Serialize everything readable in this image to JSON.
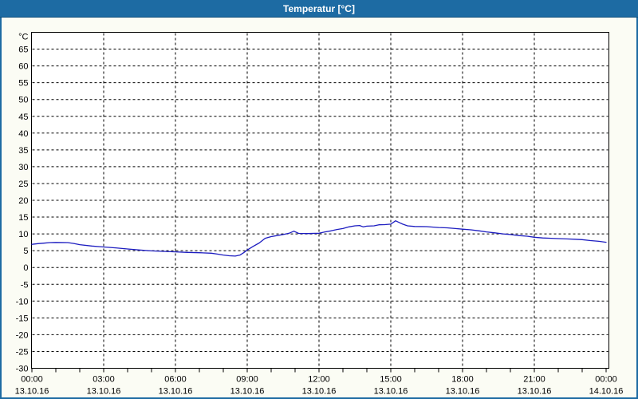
{
  "window": {
    "title": "Temperatur [°C]"
  },
  "colors": {
    "titlebar_bg": "#1d6ba3",
    "titlebar_text": "#ffffff",
    "titlebar_underline": "#0e4e7c",
    "window_border": "#1d6ba3",
    "page_bg": "#fbfcf4",
    "plot_bg": "#ffffff",
    "plot_border": "#000000",
    "grid": "#000000",
    "tick_text": "#000000",
    "series_line": "#1c1cc0"
  },
  "chart_data": {
    "type": "line",
    "title": "Temperatur [°C]",
    "y_unit_label": "°C",
    "ylim": [
      -30,
      70
    ],
    "ytick_step": 5,
    "yticks": [
      65,
      60,
      55,
      50,
      45,
      40,
      35,
      30,
      25,
      20,
      15,
      10,
      5,
      0,
      -5,
      -10,
      -15,
      -20,
      -25,
      -30
    ],
    "x_hours_range": [
      0,
      24
    ],
    "x_minor_tick_hours": 1,
    "x_major_ticks": [
      {
        "hour": 0,
        "time": "00:00",
        "date": "13.10.16"
      },
      {
        "hour": 3,
        "time": "03:00",
        "date": "13.10.16"
      },
      {
        "hour": 6,
        "time": "06:00",
        "date": "13.10.16"
      },
      {
        "hour": 9,
        "time": "09:00",
        "date": "13.10.16"
      },
      {
        "hour": 12,
        "time": "12:00",
        "date": "13.10.16"
      },
      {
        "hour": 15,
        "time": "15:00",
        "date": "13.10.16"
      },
      {
        "hour": 18,
        "time": "18:00",
        "date": "13.10.16"
      },
      {
        "hour": 21,
        "time": "21:00",
        "date": "13.10.16"
      },
      {
        "hour": 24,
        "time": "00:00",
        "date": "14.10.16"
      }
    ],
    "grid": "dashed",
    "legend": "none",
    "series": [
      {
        "name": "Temperatur",
        "color": "#1c1cc0",
        "points": [
          [
            0,
            6.9
          ],
          [
            0.25,
            7.1
          ],
          [
            0.5,
            7.25
          ],
          [
            0.75,
            7.4
          ],
          [
            1,
            7.45
          ],
          [
            1.5,
            7.4
          ],
          [
            1.75,
            7.15
          ],
          [
            2,
            6.8
          ],
          [
            2.5,
            6.4
          ],
          [
            3,
            6.1
          ],
          [
            3.5,
            5.85
          ],
          [
            4,
            5.5
          ],
          [
            4.5,
            5.2
          ],
          [
            5,
            4.95
          ],
          [
            5.5,
            4.8
          ],
          [
            6,
            4.65
          ],
          [
            6.5,
            4.5
          ],
          [
            7,
            4.4
          ],
          [
            7.5,
            4.25
          ],
          [
            7.75,
            4.0
          ],
          [
            8,
            3.7
          ],
          [
            8.25,
            3.5
          ],
          [
            8.5,
            3.4
          ],
          [
            8.7,
            3.7
          ],
          [
            8.85,
            4.4
          ],
          [
            9,
            5.2
          ],
          [
            9.25,
            6.3
          ],
          [
            9.5,
            7.3
          ],
          [
            9.75,
            8.7
          ],
          [
            10,
            9.2
          ],
          [
            10.25,
            9.5
          ],
          [
            10.5,
            9.8
          ],
          [
            10.75,
            10.2
          ],
          [
            10.95,
            10.8
          ],
          [
            11.15,
            10.15
          ],
          [
            11.5,
            10.1
          ],
          [
            12,
            10.2
          ],
          [
            12.25,
            10.6
          ],
          [
            12.5,
            10.9
          ],
          [
            12.75,
            11.3
          ],
          [
            13,
            11.6
          ],
          [
            13.25,
            12.1
          ],
          [
            13.5,
            12.4
          ],
          [
            13.7,
            12.5
          ],
          [
            13.85,
            12.1
          ],
          [
            14,
            12.3
          ],
          [
            14.3,
            12.4
          ],
          [
            14.5,
            12.7
          ],
          [
            14.75,
            12.75
          ],
          [
            15,
            12.9
          ],
          [
            15.2,
            13.9
          ],
          [
            15.35,
            13.4
          ],
          [
            15.5,
            12.9
          ],
          [
            15.7,
            12.4
          ],
          [
            16,
            12.2
          ],
          [
            16.5,
            12.15
          ],
          [
            17,
            11.9
          ],
          [
            17.35,
            11.8
          ],
          [
            17.7,
            11.6
          ],
          [
            18,
            11.4
          ],
          [
            18.35,
            11.2
          ],
          [
            18.7,
            10.9
          ],
          [
            19,
            10.6
          ],
          [
            19.35,
            10.3
          ],
          [
            19.7,
            10.0
          ],
          [
            20,
            9.8
          ],
          [
            20.35,
            9.5
          ],
          [
            20.7,
            9.3
          ],
          [
            21,
            9.0
          ],
          [
            21.35,
            8.8
          ],
          [
            21.7,
            8.7
          ],
          [
            22,
            8.6
          ],
          [
            22.35,
            8.5
          ],
          [
            22.7,
            8.4
          ],
          [
            23,
            8.3
          ],
          [
            23.35,
            8.0
          ],
          [
            23.7,
            7.8
          ],
          [
            24,
            7.5
          ]
        ]
      }
    ]
  }
}
